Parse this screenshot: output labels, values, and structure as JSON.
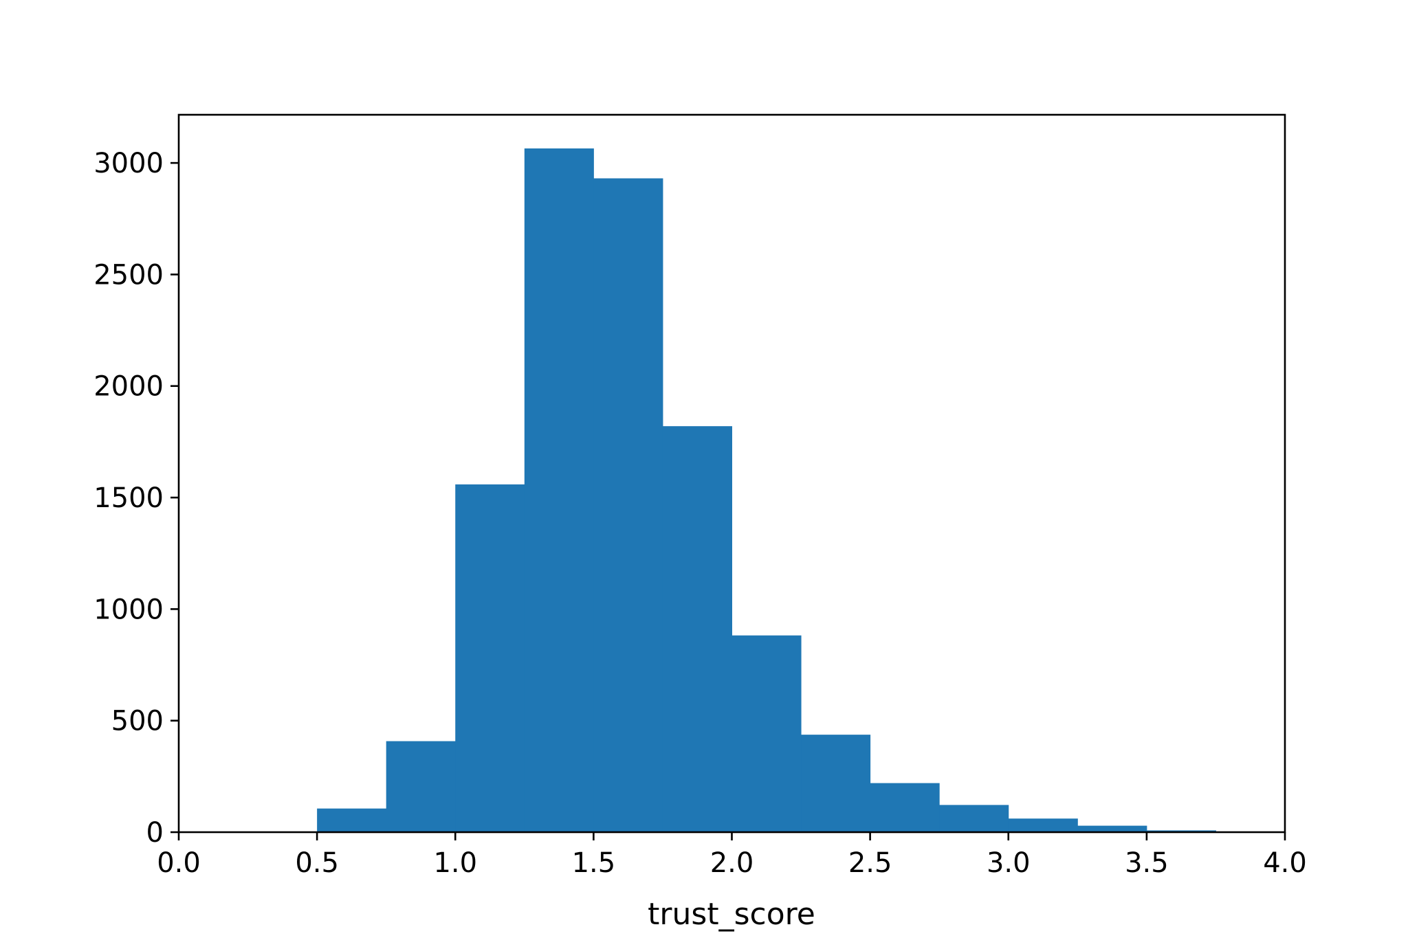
{
  "chart_data": {
    "type": "bar",
    "subtype": "histogram",
    "title": "",
    "xlabel": "trust_score",
    "ylabel": "",
    "xlim": [
      0.0,
      4.0
    ],
    "ylim": [
      0,
      3216
    ],
    "grid": false,
    "bar_color": "#1f77b4",
    "bin_edges": [
      0.5,
      0.75,
      1.0,
      1.25,
      1.5,
      1.75,
      2.0,
      2.25,
      2.5,
      2.75,
      3.0,
      3.25,
      3.5,
      3.75
    ],
    "values": [
      106,
      408,
      1559,
      3065,
      2931,
      1820,
      882,
      437,
      220,
      122,
      61,
      29,
      8
    ],
    "xticks": [
      0.0,
      0.5,
      1.0,
      1.5,
      2.0,
      2.5,
      3.0,
      3.5,
      4.0
    ],
    "xtick_labels": [
      "0.0",
      "0.5",
      "1.0",
      "1.5",
      "2.0",
      "2.5",
      "3.0",
      "3.5",
      "4.0"
    ],
    "yticks": [
      0,
      500,
      1000,
      1500,
      2000,
      2500,
      3000
    ],
    "ytick_labels": [
      "0",
      "500",
      "1000",
      "1500",
      "2000",
      "2500",
      "3000"
    ]
  }
}
